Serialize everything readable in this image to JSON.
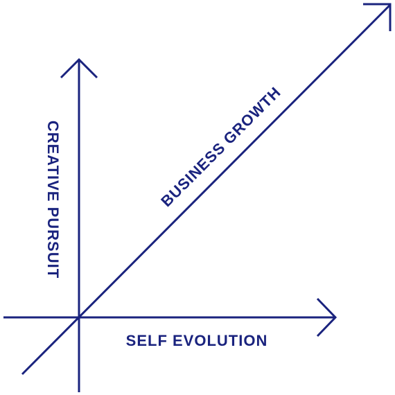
{
  "colors": {
    "ink": "#1a237e"
  },
  "labels": {
    "vertical": "CREATIVE PURSUIT",
    "horizontal": "SELF EVOLUTION",
    "diagonal": "BUSINESS GROWTH"
  }
}
